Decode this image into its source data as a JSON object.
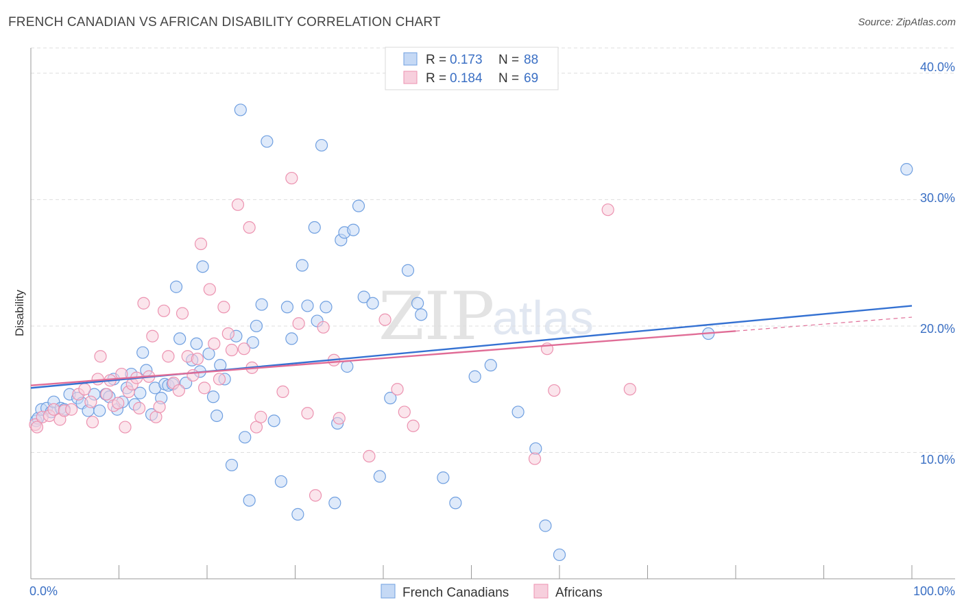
{
  "header": {
    "title": "FRENCH CANADIAN VS AFRICAN DISABILITY CORRELATION CHART",
    "source": "Source: ZipAtlas.com"
  },
  "watermark": {
    "zip": "ZIP",
    "atlas": "atlas"
  },
  "chart_data": {
    "type": "scatter",
    "title": "FRENCH CANADIAN VS AFRICAN DISABILITY CORRELATION CHART",
    "xlabel": "",
    "ylabel": "Disability",
    "xlim": [
      0,
      100
    ],
    "ylim": [
      0,
      42
    ],
    "x_tick_labels": {
      "min": "0.0%",
      "max": "100.0%"
    },
    "y_ticks": [
      10,
      20,
      30,
      40
    ],
    "y_tick_labels": [
      "10.0%",
      "20.0%",
      "30.0%",
      "40.0%"
    ],
    "legend_position": "top-center",
    "stats_legend": [
      {
        "r_label": "R = ",
        "r_value": "0.173",
        "n_label": "N = ",
        "n_value": "88"
      },
      {
        "r_label": "R = ",
        "r_value": "0.184",
        "n_label": "N = ",
        "n_value": "69"
      }
    ],
    "series": [
      {
        "name": "French Canadians",
        "color": "#6f9fe0",
        "fill": "#c5d9f5",
        "trend": {
          "x0": 0,
          "y0": 15.1,
          "x1": 100,
          "y1": 21.6,
          "color": "#3471d2"
        },
        "points": [
          [
            0.6,
            12.5
          ],
          [
            0.8,
            12.7
          ],
          [
            1.2,
            13.4
          ],
          [
            1.8,
            13.5
          ],
          [
            2.3,
            13.2
          ],
          [
            2.6,
            14.0
          ],
          [
            3.4,
            13.5
          ],
          [
            3.8,
            13.4
          ],
          [
            4.4,
            14.6
          ],
          [
            5.3,
            14.3
          ],
          [
            5.8,
            13.9
          ],
          [
            6.5,
            13.3
          ],
          [
            7.2,
            14.6
          ],
          [
            7.8,
            13.3
          ],
          [
            8.5,
            14.6
          ],
          [
            8.9,
            14.4
          ],
          [
            9.4,
            15.8
          ],
          [
            9.8,
            13.4
          ],
          [
            10.4,
            14.0
          ],
          [
            10.9,
            15.1
          ],
          [
            11.4,
            16.2
          ],
          [
            11.8,
            13.8
          ],
          [
            12.4,
            14.7
          ],
          [
            12.7,
            17.9
          ],
          [
            13.1,
            16.5
          ],
          [
            13.7,
            13.0
          ],
          [
            14.1,
            15.1
          ],
          [
            14.8,
            14.3
          ],
          [
            15.2,
            15.4
          ],
          [
            15.6,
            15.3
          ],
          [
            16.1,
            15.4
          ],
          [
            16.5,
            23.1
          ],
          [
            16.9,
            19.0
          ],
          [
            17.6,
            15.5
          ],
          [
            18.3,
            17.3
          ],
          [
            18.8,
            18.6
          ],
          [
            19.2,
            16.4
          ],
          [
            19.5,
            24.7
          ],
          [
            20.2,
            17.8
          ],
          [
            20.7,
            14.4
          ],
          [
            21.1,
            12.9
          ],
          [
            21.5,
            16.9
          ],
          [
            22.0,
            15.8
          ],
          [
            22.8,
            9.0
          ],
          [
            23.3,
            19.2
          ],
          [
            23.8,
            37.1
          ],
          [
            24.3,
            11.2
          ],
          [
            24.8,
            6.2
          ],
          [
            25.2,
            18.7
          ],
          [
            25.6,
            20.0
          ],
          [
            26.2,
            21.7
          ],
          [
            26.8,
            34.6
          ],
          [
            27.6,
            12.5
          ],
          [
            28.4,
            7.7
          ],
          [
            29.1,
            21.5
          ],
          [
            29.6,
            19.0
          ],
          [
            30.3,
            5.1
          ],
          [
            30.8,
            24.8
          ],
          [
            31.4,
            21.6
          ],
          [
            32.2,
            27.8
          ],
          [
            32.5,
            20.4
          ],
          [
            33.0,
            34.3
          ],
          [
            33.5,
            21.5
          ],
          [
            34.5,
            6.0
          ],
          [
            34.8,
            12.3
          ],
          [
            35.2,
            26.8
          ],
          [
            35.6,
            27.4
          ],
          [
            35.9,
            16.8
          ],
          [
            36.6,
            27.6
          ],
          [
            37.2,
            29.5
          ],
          [
            37.8,
            22.3
          ],
          [
            38.8,
            21.8
          ],
          [
            39.6,
            8.1
          ],
          [
            40.8,
            14.3
          ],
          [
            42.8,
            24.4
          ],
          [
            43.9,
            21.8
          ],
          [
            44.3,
            20.9
          ],
          [
            46.8,
            8.0
          ],
          [
            48.2,
            6.0
          ],
          [
            50.4,
            16.0
          ],
          [
            52.2,
            16.9
          ],
          [
            55.3,
            13.2
          ],
          [
            57.3,
            10.3
          ],
          [
            58.4,
            4.2
          ],
          [
            60.0,
            1.9
          ],
          [
            76.9,
            19.4
          ],
          [
            99.4,
            32.4
          ]
        ]
      },
      {
        "name": "Africans",
        "color": "#ec92b0",
        "fill": "#f7cfdd",
        "trend": {
          "x0": 0,
          "y0": 15.3,
          "x1": 80,
          "y1": 19.6,
          "color": "#e06c96"
        },
        "trend_extension": {
          "x0": 80,
          "y0": 19.6,
          "x1": 100,
          "y1": 20.7
        },
        "points": [
          [
            0.5,
            12.2
          ],
          [
            0.7,
            12.0
          ],
          [
            1.3,
            12.8
          ],
          [
            2.1,
            12.9
          ],
          [
            2.6,
            13.4
          ],
          [
            3.3,
            12.6
          ],
          [
            3.8,
            13.3
          ],
          [
            4.6,
            13.4
          ],
          [
            5.4,
            14.6
          ],
          [
            6.1,
            15.0
          ],
          [
            6.8,
            14.0
          ],
          [
            7.0,
            12.4
          ],
          [
            7.6,
            15.8
          ],
          [
            7.9,
            17.6
          ],
          [
            8.6,
            14.6
          ],
          [
            9.0,
            15.7
          ],
          [
            9.4,
            13.7
          ],
          [
            9.9,
            13.9
          ],
          [
            10.3,
            16.2
          ],
          [
            10.7,
            12.0
          ],
          [
            11.1,
            14.8
          ],
          [
            11.5,
            15.4
          ],
          [
            12.0,
            15.9
          ],
          [
            12.3,
            13.5
          ],
          [
            12.8,
            21.8
          ],
          [
            13.4,
            16.0
          ],
          [
            13.8,
            19.2
          ],
          [
            14.2,
            12.8
          ],
          [
            14.6,
            13.6
          ],
          [
            15.1,
            21.2
          ],
          [
            15.6,
            17.6
          ],
          [
            16.2,
            15.5
          ],
          [
            16.8,
            14.9
          ],
          [
            17.2,
            21.0
          ],
          [
            17.8,
            17.6
          ],
          [
            18.4,
            16.1
          ],
          [
            18.9,
            17.4
          ],
          [
            19.3,
            26.5
          ],
          [
            19.7,
            15.1
          ],
          [
            20.3,
            22.9
          ],
          [
            20.8,
            18.6
          ],
          [
            21.4,
            15.8
          ],
          [
            21.9,
            21.5
          ],
          [
            22.4,
            19.4
          ],
          [
            22.8,
            18.1
          ],
          [
            23.5,
            29.6
          ],
          [
            24.2,
            18.2
          ],
          [
            24.8,
            27.8
          ],
          [
            25.1,
            16.7
          ],
          [
            25.6,
            12.0
          ],
          [
            26.1,
            12.8
          ],
          [
            28.6,
            14.8
          ],
          [
            29.6,
            31.7
          ],
          [
            30.4,
            20.2
          ],
          [
            31.4,
            13.1
          ],
          [
            32.3,
            6.6
          ],
          [
            33.2,
            19.9
          ],
          [
            34.4,
            17.3
          ],
          [
            35.0,
            12.7
          ],
          [
            38.4,
            9.7
          ],
          [
            40.2,
            20.5
          ],
          [
            41.6,
            15.0
          ],
          [
            42.4,
            13.2
          ],
          [
            43.4,
            12.1
          ],
          [
            57.2,
            9.5
          ],
          [
            58.6,
            18.2
          ],
          [
            59.4,
            14.9
          ],
          [
            65.5,
            29.2
          ],
          [
            68.0,
            15.0
          ]
        ]
      }
    ]
  }
}
